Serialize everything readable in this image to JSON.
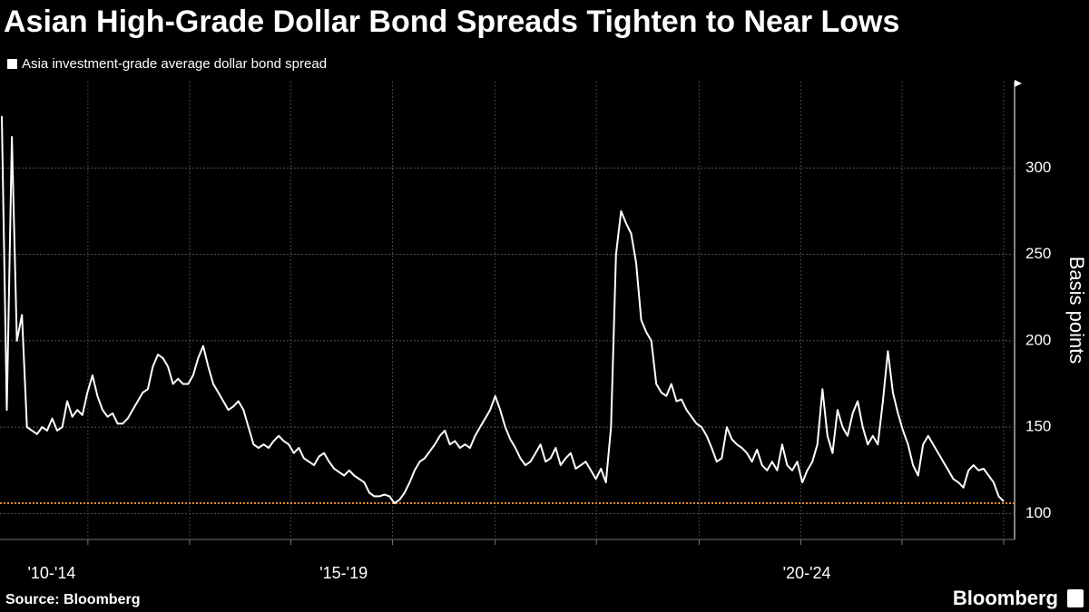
{
  "chart_data": {
    "type": "line",
    "title": "Asian High-Grade Dollar Bond Spreads Tighten to Near Lows",
    "y_label": "Basis points",
    "source": "Source: Bloomberg",
    "brand": "Bloomberg",
    "series": [
      {
        "name": "Asia investment-grade average dollar bond spread",
        "color": "#ffffff",
        "values": [
          330,
          160,
          318,
          200,
          215,
          150,
          148,
          146,
          150,
          148,
          155,
          148,
          150,
          165,
          156,
          160,
          157,
          170,
          180,
          168,
          160,
          156,
          158,
          152,
          152,
          155,
          160,
          165,
          170,
          172,
          185,
          192,
          190,
          185,
          175,
          178,
          175,
          175,
          180,
          190,
          197,
          185,
          175,
          170,
          165,
          160,
          162,
          165,
          160,
          150,
          140,
          138,
          140,
          138,
          142,
          145,
          142,
          140,
          135,
          138,
          132,
          130,
          128,
          133,
          135,
          130,
          126,
          124,
          122,
          125,
          122,
          120,
          118,
          112,
          110,
          110,
          111,
          110,
          106,
          108,
          112,
          118,
          125,
          130,
          132,
          136,
          140,
          145,
          148,
          140,
          142,
          138,
          140,
          138,
          145,
          150,
          155,
          160,
          168,
          160,
          150,
          143,
          138,
          132,
          128,
          130,
          135,
          140,
          130,
          132,
          138,
          128,
          132,
          135,
          126,
          128,
          130,
          125,
          120,
          126,
          118,
          150,
          250,
          275,
          268,
          262,
          245,
          212,
          205,
          200,
          175,
          170,
          168,
          175,
          165,
          166,
          160,
          156,
          152,
          150,
          145,
          138,
          130,
          132,
          150,
          143,
          140,
          138,
          135,
          130,
          137,
          128,
          125,
          130,
          125,
          140,
          128,
          125,
          130,
          118,
          125,
          130,
          140,
          172,
          145,
          135,
          160,
          150,
          145,
          158,
          165,
          150,
          140,
          145,
          140,
          165,
          194,
          170,
          158,
          148,
          140,
          128,
          122,
          140,
          145,
          140,
          135,
          130,
          125,
          120,
          118,
          115,
          125,
          128,
          125,
          126,
          122,
          118,
          110,
          107
        ]
      }
    ],
    "reference_line": {
      "value": 106,
      "color": "#e8883a"
    },
    "xlim": [
      0,
      199
    ],
    "xticks": [
      17.1,
      37.3,
      57.4,
      77.6,
      98.0,
      118.1,
      138.5,
      158.7,
      178.8,
      199
    ],
    "x_group_labels": [
      {
        "value": 9.9,
        "label": "'10-'14"
      },
      {
        "value": 67.9,
        "label": "'15-'19"
      },
      {
        "value": 159.9,
        "label": "'20-'24"
      }
    ],
    "ylim": [
      85,
      350
    ],
    "yticks": [
      100,
      150,
      200,
      250,
      300
    ],
    "grid": true
  }
}
